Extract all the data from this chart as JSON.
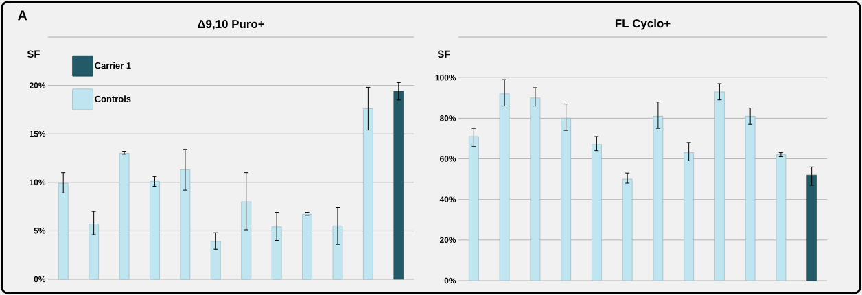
{
  "chart_data": [
    {
      "type": "bar",
      "title": "Δ9,10 Puro+",
      "ylabel": "SF",
      "annotations": [
        "A"
      ],
      "categories": [
        null,
        null,
        null,
        null,
        null,
        null,
        null,
        null,
        null,
        null,
        null,
        null
      ],
      "series": [
        {
          "name": "Carrier 1",
          "color": "#235a68",
          "values": [
            null,
            null,
            null,
            null,
            null,
            null,
            null,
            null,
            null,
            null,
            null,
            19.4
          ],
          "errors": [
            null,
            null,
            null,
            null,
            null,
            null,
            null,
            null,
            null,
            null,
            null,
            [
              18.5,
              20.3
            ]
          ]
        },
        {
          "name": "Controls",
          "color": "#bfe6f0",
          "values": [
            9.9,
            5.7,
            13.0,
            10.1,
            11.3,
            3.9,
            8.0,
            5.4,
            6.7,
            5.5,
            17.6,
            null
          ],
          "errors": [
            [
              8.9,
              11.0
            ],
            [
              4.6,
              7.0
            ],
            [
              12.9,
              13.2
            ],
            [
              9.6,
              10.6
            ],
            [
              9.2,
              13.4
            ],
            [
              3.1,
              4.8
            ],
            [
              5.1,
              11.0
            ],
            [
              4.0,
              6.9
            ],
            [
              6.6,
              6.9
            ],
            [
              3.6,
              7.4
            ],
            [
              15.4,
              19.8
            ],
            null
          ]
        }
      ],
      "ylim": [
        0,
        25
      ],
      "yticks": [
        {
          "value": 0,
          "label": "0%"
        },
        {
          "value": 5,
          "label": "5%"
        },
        {
          "value": 10,
          "label": "10%"
        },
        {
          "value": 15,
          "label": "15%"
        },
        {
          "value": 20,
          "label": "20%"
        }
      ],
      "grid": "y",
      "legend": "top left"
    },
    {
      "type": "bar",
      "title": "FL Cyclo+",
      "ylabel": "SF",
      "categories": [
        null,
        null,
        null,
        null,
        null,
        null,
        null,
        null,
        null,
        null,
        null,
        null
      ],
      "series": [
        {
          "color": "#bfe6f0",
          "values": [
            71,
            92,
            90,
            80,
            67,
            50,
            81,
            63,
            93,
            81,
            62,
            null
          ],
          "errors": [
            [
              66,
              75
            ],
            [
              86,
              99
            ],
            [
              86,
              95
            ],
            [
              74,
              87
            ],
            [
              64,
              71
            ],
            [
              48,
              53
            ],
            [
              75,
              88
            ],
            [
              59,
              68
            ],
            [
              89,
              97
            ],
            [
              77,
              85
            ],
            [
              61,
              63
            ],
            null
          ]
        },
        {
          "color": "#235a68",
          "values": [
            null,
            null,
            null,
            null,
            null,
            null,
            null,
            null,
            null,
            null,
            null,
            52
          ],
          "errors": [
            null,
            null,
            null,
            null,
            null,
            null,
            null,
            null,
            null,
            null,
            null,
            [
              47,
              56
            ]
          ]
        }
      ],
      "ylim": [
        0,
        120
      ],
      "yticks": [
        {
          "value": 0,
          "label": "0%"
        },
        {
          "value": 20,
          "label": "20%"
        },
        {
          "value": 40,
          "label": "40%"
        },
        {
          "value": 60,
          "label": "60%"
        },
        {
          "value": 80,
          "label": "80%"
        },
        {
          "value": 100,
          "label": "100%"
        }
      ],
      "grid": "y",
      "legend": false
    }
  ]
}
